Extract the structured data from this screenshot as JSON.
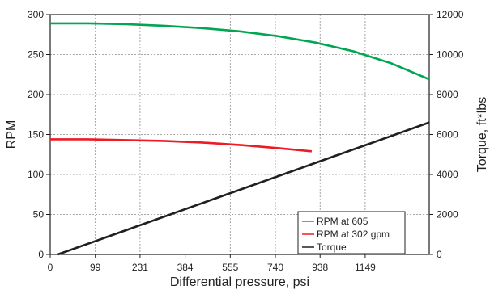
{
  "chart_data": {
    "type": "line",
    "xlabel": "Differential pressure, psi",
    "ylabel_left": "RPM",
    "ylabel_right": "Torque, ft*lbs",
    "x_tick_labels": [
      "0",
      "99",
      "231",
      "384",
      "555",
      "740",
      "938",
      "1149"
    ],
    "x_tick_fractions": [
      0,
      0.119,
      0.237,
      0.356,
      0.475,
      0.594,
      0.712,
      0.831
    ],
    "ylim_left": [
      0,
      300
    ],
    "yticks_left": [
      0,
      50,
      100,
      150,
      200,
      250,
      300
    ],
    "ylim_right": [
      0,
      12000
    ],
    "yticks_right": [
      "0",
      "2000",
      "4000",
      "6000",
      "8000",
      "10000",
      "12000"
    ],
    "yticks_right_values": [
      0,
      2000,
      4000,
      6000,
      8000,
      10000,
      12000
    ],
    "grid": true,
    "legend_position": "lower-right",
    "series": [
      {
        "name": "RPM at 605",
        "axis": "left",
        "color": "#00a651",
        "x_fraction": [
          0,
          0.1,
          0.2,
          0.3,
          0.4,
          0.5,
          0.6,
          0.7,
          0.8,
          0.9,
          1.0
        ],
        "values": [
          289,
          289,
          288,
          286,
          283,
          279,
          273,
          265,
          254,
          239,
          219
        ]
      },
      {
        "name": "RPM at 302 gpm",
        "axis": "left",
        "color": "#ed1c24",
        "x_fraction": [
          0,
          0.1,
          0.2,
          0.3,
          0.4,
          0.5,
          0.6,
          0.69
        ],
        "values": [
          144,
          144,
          143,
          142,
          140,
          137,
          133,
          129
        ]
      },
      {
        "name": "Torque",
        "axis": "right",
        "color": "#231f20",
        "x_fraction": [
          0.02,
          1.0
        ],
        "values": [
          0,
          6600
        ]
      }
    ]
  }
}
